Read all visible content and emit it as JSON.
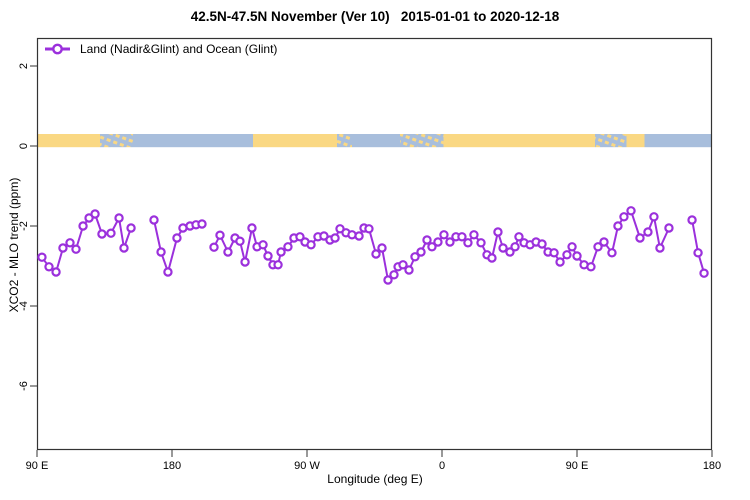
{
  "window": {
    "title": "42.5N-47.5N November (Ver 10)   2015-01-01 to 2020-12-18"
  },
  "colors": {
    "series_purple": "#9B30DC",
    "land_tan": "#FAD883",
    "ocean_blue": "#A8BEDC",
    "axis": "#333333",
    "background": "#FFFFFF"
  },
  "chart_data": {
    "type": "line",
    "title": "42.5N-47.5N November (Ver 10)   2015-01-01 to 2020-12-18",
    "xlabel": "Longitude (deg E)",
    "ylabel": "XCO2 - MLO trend (ppm)",
    "xlim": [
      90,
      540
    ],
    "ylim": [
      -7.6,
      2.7
    ],
    "grid": false,
    "x_ticks": [
      {
        "value": 90,
        "label": "90 E"
      },
      {
        "value": 180,
        "label": "180"
      },
      {
        "value": 270,
        "label": "90 W"
      },
      {
        "value": 360,
        "label": "0"
      },
      {
        "value": 450,
        "label": "90 E"
      },
      {
        "value": 540,
        "label": "180"
      }
    ],
    "y_ticks": [
      {
        "value": 2,
        "label": "2"
      },
      {
        "value": 0,
        "label": "0"
      },
      {
        "value": -2,
        "label": "-2"
      },
      {
        "value": -4,
        "label": "-4"
      },
      {
        "value": -6,
        "label": "-6"
      }
    ],
    "legend": {
      "label": "Land (Nadir&Glint) and Ocean (Glint)",
      "position": "top-left",
      "marker": "open-circle-on-line"
    },
    "surface_band": {
      "description": "land/ocean surface-type strip drawn along y=0",
      "y_range": [
        -0.03,
        0.3
      ],
      "land_color": "#FAD883",
      "ocean_color": "#A8BEDC",
      "segments": [
        {
          "from": 90,
          "to": 132,
          "type": "land"
        },
        {
          "from": 132,
          "to": 154,
          "type": "mixed"
        },
        {
          "from": 154,
          "to": 234,
          "type": "ocean"
        },
        {
          "from": 234,
          "to": 290,
          "type": "land"
        },
        {
          "from": 290,
          "to": 300,
          "type": "mixed"
        },
        {
          "from": 300,
          "to": 332,
          "type": "ocean"
        },
        {
          "from": 332,
          "to": 361,
          "type": "mixed"
        },
        {
          "from": 361,
          "to": 462,
          "type": "land"
        },
        {
          "from": 462,
          "to": 483,
          "type": "mixed"
        },
        {
          "from": 483,
          "to": 495,
          "type": "land"
        },
        {
          "from": 495,
          "to": 540,
          "type": "ocean"
        }
      ]
    },
    "series": [
      {
        "name": "Land (Nadir&Glint) and Ocean (Glint)",
        "color": "#9B30DC",
        "marker": "open-circle",
        "segments": [
          [
            [
              93.3,
              -2.78
            ],
            [
              98.0,
              -3.02
            ],
            [
              102.7,
              -3.15
            ],
            [
              107.3,
              -2.55
            ],
            [
              112.0,
              -2.42
            ],
            [
              116.0,
              -2.58
            ],
            [
              120.7,
              -2.0
            ],
            [
              124.7,
              -1.8
            ],
            [
              128.7,
              -1.7
            ],
            [
              133.3,
              -2.2
            ],
            [
              139.3,
              -2.18
            ],
            [
              144.7,
              -1.8
            ],
            [
              148.0,
              -2.55
            ],
            [
              152.7,
              -2.05
            ]
          ],
          [
            [
              168.0,
              -1.85
            ],
            [
              172.7,
              -2.65
            ],
            [
              177.3,
              -3.15
            ],
            [
              183.3,
              -2.3
            ],
            [
              187.3,
              -2.05
            ],
            [
              192.0,
              -2.0
            ],
            [
              196.0,
              -1.97
            ],
            [
              200.0,
              -1.95
            ]
          ],
          [
            [
              208.0,
              -2.53
            ],
            [
              212.0,
              -2.23
            ],
            [
              217.3,
              -2.65
            ],
            [
              222.0,
              -2.3
            ],
            [
              225.3,
              -2.38
            ],
            [
              228.7,
              -2.9
            ],
            [
              233.3,
              -2.05
            ],
            [
              236.7,
              -2.52
            ],
            [
              240.7,
              -2.47
            ],
            [
              244.0,
              -2.75
            ],
            [
              247.3,
              -2.97
            ],
            [
              250.7,
              -2.97
            ],
            [
              252.7,
              -2.65
            ],
            [
              257.3,
              -2.52
            ],
            [
              261.3,
              -2.3
            ],
            [
              265.3,
              -2.27
            ],
            [
              268.7,
              -2.4
            ],
            [
              272.7,
              -2.47
            ],
            [
              277.3,
              -2.27
            ],
            [
              281.3,
              -2.25
            ],
            [
              285.3,
              -2.35
            ],
            [
              288.7,
              -2.3
            ],
            [
              292.0,
              -2.07
            ],
            [
              296.0,
              -2.17
            ],
            [
              300.0,
              -2.22
            ],
            [
              304.7,
              -2.25
            ],
            [
              308.0,
              -2.05
            ],
            [
              311.3,
              -2.07
            ],
            [
              316.0,
              -2.7
            ],
            [
              320.0,
              -2.55
            ],
            [
              324.0,
              -3.35
            ],
            [
              328.0,
              -3.22
            ],
            [
              330.7,
              -3.02
            ],
            [
              334.0,
              -2.97
            ],
            [
              338.0,
              -3.1
            ],
            [
              342.0,
              -2.77
            ],
            [
              346.0,
              -2.65
            ],
            [
              350.0,
              -2.35
            ],
            [
              353.3,
              -2.52
            ],
            [
              357.3,
              -2.4
            ],
            [
              361.3,
              -2.22
            ],
            [
              365.3,
              -2.4
            ],
            [
              369.3,
              -2.27
            ],
            [
              373.3,
              -2.27
            ],
            [
              377.3,
              -2.42
            ],
            [
              381.3,
              -2.22
            ],
            [
              386.0,
              -2.42
            ],
            [
              390.0,
              -2.72
            ],
            [
              393.3,
              -2.8
            ],
            [
              397.3,
              -2.15
            ],
            [
              400.7,
              -2.55
            ],
            [
              405.3,
              -2.65
            ],
            [
              408.7,
              -2.52
            ],
            [
              411.3,
              -2.27
            ],
            [
              414.7,
              -2.42
            ],
            [
              418.7,
              -2.47
            ],
            [
              422.7,
              -2.4
            ],
            [
              426.7,
              -2.45
            ],
            [
              430.7,
              -2.65
            ],
            [
              434.7,
              -2.67
            ],
            [
              438.7,
              -2.9
            ],
            [
              443.3,
              -2.72
            ],
            [
              446.7,
              -2.52
            ],
            [
              450.0,
              -2.75
            ],
            [
              454.7,
              -2.97
            ],
            [
              459.3,
              -3.02
            ],
            [
              464.0,
              -2.52
            ],
            [
              468.0,
              -2.4
            ],
            [
              473.3,
              -2.67
            ],
            [
              477.3,
              -2.0
            ],
            [
              481.3,
              -1.77
            ],
            [
              486.0,
              -1.62
            ],
            [
              492.0,
              -2.3
            ],
            [
              497.3,
              -2.15
            ],
            [
              501.3,
              -1.77
            ],
            [
              505.3,
              -2.55
            ],
            [
              511.3,
              -2.05
            ]
          ],
          [
            [
              526.7,
              -1.85
            ],
            [
              530.7,
              -2.67
            ],
            [
              534.7,
              -3.18
            ]
          ]
        ]
      }
    ]
  }
}
